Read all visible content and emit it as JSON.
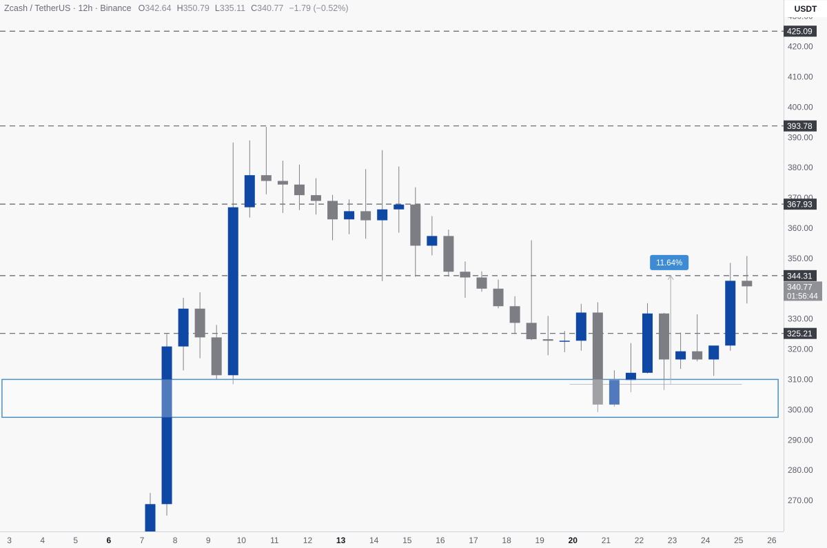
{
  "header": {
    "symbol": "Zcash / TetherUS · 12h · Binance",
    "open_key": "O",
    "open": "342.64",
    "high_key": "H",
    "high": "350.79",
    "low_key": "L",
    "low": "335.11",
    "close_key": "C",
    "close": "340.77",
    "change": "−1.79 (−0.52%)"
  },
  "currency_button": "USDT",
  "colors": {
    "background": "#f8f8f9",
    "up": "#0f47a5",
    "down": "#7d7e84",
    "wick": "#7d8088",
    "level_line": "#5e6068",
    "zone_border": "#2e7cb6",
    "measure_badge": "#3d8bd4"
  },
  "chart_data": {
    "type": "candlestick",
    "y_axis_ticks": [
      "430.00",
      "420.00",
      "410.00",
      "400.00",
      "390.00",
      "380.00",
      "370.00",
      "360.00",
      "350.00",
      "340.00",
      "330.00",
      "320.00",
      "310.00",
      "300.00",
      "290.00",
      "280.00",
      "270.00"
    ],
    "y_range": [
      266,
      433
    ],
    "x_axis_ticks": [
      {
        "label": "3",
        "i": -8.5,
        "bold": false
      },
      {
        "label": "4",
        "i": -6.5,
        "bold": false
      },
      {
        "label": "5",
        "i": -4.5,
        "bold": false
      },
      {
        "label": "6",
        "i": -2.5,
        "bold": true
      },
      {
        "label": "7",
        "i": -0.5,
        "bold": false
      },
      {
        "label": "8",
        "i": 1.5,
        "bold": false
      },
      {
        "label": "9",
        "i": 3.5,
        "bold": false
      },
      {
        "label": "10",
        "i": 5.5,
        "bold": false
      },
      {
        "label": "11",
        "i": 7.5,
        "bold": false
      },
      {
        "label": "12",
        "i": 9.5,
        "bold": false
      },
      {
        "label": "13",
        "i": 11.5,
        "bold": true
      },
      {
        "label": "14",
        "i": 13.5,
        "bold": false
      },
      {
        "label": "15",
        "i": 15.5,
        "bold": false
      },
      {
        "label": "16",
        "i": 17.5,
        "bold": false
      },
      {
        "label": "17",
        "i": 19.5,
        "bold": false
      },
      {
        "label": "18",
        "i": 21.5,
        "bold": false
      },
      {
        "label": "19",
        "i": 23.5,
        "bold": false
      },
      {
        "label": "20",
        "i": 25.5,
        "bold": true
      },
      {
        "label": "21",
        "i": 27.5,
        "bold": false
      },
      {
        "label": "22",
        "i": 29.5,
        "bold": false
      },
      {
        "label": "23",
        "i": 31.5,
        "bold": false
      },
      {
        "label": "24",
        "i": 33.5,
        "bold": false
      },
      {
        "label": "25",
        "i": 35.5,
        "bold": false
      },
      {
        "label": "26",
        "i": 37.5,
        "bold": false
      }
    ],
    "candles": [
      {
        "o": 251.0,
        "h": 272.5,
        "l": 250.0,
        "c": 268.8
      },
      {
        "o": 268.8,
        "h": 325.0,
        "l": 265.0,
        "c": 320.9
      },
      {
        "o": 320.9,
        "h": 337.0,
        "l": 313.0,
        "c": 333.4
      },
      {
        "o": 333.4,
        "h": 338.8,
        "l": 317.0,
        "c": 323.9
      },
      {
        "o": 323.9,
        "h": 328.0,
        "l": 310.0,
        "c": 311.4
      },
      {
        "o": 311.4,
        "h": 388.3,
        "l": 308.4,
        "c": 366.9
      },
      {
        "o": 366.9,
        "h": 389.0,
        "l": 363.5,
        "c": 377.5
      },
      {
        "o": 377.5,
        "h": 393.5,
        "l": 371.2,
        "c": 375.6
      },
      {
        "o": 375.6,
        "h": 382.3,
        "l": 365.0,
        "c": 374.4
      },
      {
        "o": 374.4,
        "h": 381.0,
        "l": 366.0,
        "c": 370.9
      },
      {
        "o": 370.9,
        "h": 376.5,
        "l": 364.5,
        "c": 369.0
      },
      {
        "o": 369.0,
        "h": 371.0,
        "l": 356.0,
        "c": 362.9
      },
      {
        "o": 362.9,
        "h": 369.5,
        "l": 358.0,
        "c": 365.6
      },
      {
        "o": 365.6,
        "h": 379.5,
        "l": 356.5,
        "c": 362.6
      },
      {
        "o": 362.6,
        "h": 385.8,
        "l": 342.5,
        "c": 366.2
      },
      {
        "o": 366.2,
        "h": 380.4,
        "l": 358.5,
        "c": 367.8
      },
      {
        "o": 367.8,
        "h": 373.5,
        "l": 344.0,
        "c": 354.2
      },
      {
        "o": 354.2,
        "h": 364.0,
        "l": 351.0,
        "c": 357.4
      },
      {
        "o": 357.4,
        "h": 359.5,
        "l": 344.0,
        "c": 345.6
      },
      {
        "o": 345.6,
        "h": 349.0,
        "l": 337.0,
        "c": 343.7
      },
      {
        "o": 343.7,
        "h": 345.7,
        "l": 339.0,
        "c": 340.0
      },
      {
        "o": 340.0,
        "h": 343.0,
        "l": 333.5,
        "c": 334.2
      },
      {
        "o": 334.2,
        "h": 337.5,
        "l": 325.0,
        "c": 328.7
      },
      {
        "o": 328.7,
        "h": 356.0,
        "l": 323.0,
        "c": 323.3
      },
      {
        "o": 323.3,
        "h": 331.0,
        "l": 318.0,
        "c": 322.8
      },
      {
        "o": 322.8,
        "h": 326.0,
        "l": 319.0,
        "c": 322.8
      },
      {
        "o": 322.8,
        "h": 335.0,
        "l": 319.5,
        "c": 332.1
      },
      {
        "o": 332.1,
        "h": 335.5,
        "l": 299.2,
        "c": 301.7
      },
      {
        "o": 301.7,
        "h": 313.0,
        "l": 301.0,
        "c": 309.8
      },
      {
        "o": 309.8,
        "h": 322.0,
        "l": 305.8,
        "c": 312.2
      },
      {
        "o": 312.2,
        "h": 335.2,
        "l": 312.0,
        "c": 331.8
      },
      {
        "o": 331.8,
        "h": 332.0,
        "l": 306.5,
        "c": 316.6
      },
      {
        "o": 316.6,
        "h": 325.5,
        "l": 313.5,
        "c": 319.3
      },
      {
        "o": 319.3,
        "h": 331.5,
        "l": 316.0,
        "c": 316.6
      },
      {
        "o": 316.6,
        "h": 321.0,
        "l": 311.2,
        "c": 321.2
      },
      {
        "o": 321.2,
        "h": 348.5,
        "l": 319.5,
        "c": 342.6
      },
      {
        "o": 342.6,
        "h": 350.79,
        "l": 335.11,
        "c": 340.77
      }
    ],
    "levels": [
      {
        "value": 425.09,
        "label": "425.09"
      },
      {
        "value": 393.78,
        "label": "393.78"
      },
      {
        "value": 367.93,
        "label": "367.93"
      },
      {
        "value": 344.31,
        "label": "344.31"
      },
      {
        "value": 325.21,
        "label": "325.21"
      }
    ],
    "zone": {
      "from": 297.5,
      "to": 310.0
    },
    "measure": {
      "i": 31.4,
      "from": 308.4,
      "to": 344.31,
      "label": "11.64%"
    },
    "low_line": {
      "from_i": 25.3,
      "to_i": 35.7,
      "value": 308.4
    },
    "last_price": {
      "value": 340.77,
      "label": "340.77",
      "countdown": "01:56:44"
    }
  }
}
